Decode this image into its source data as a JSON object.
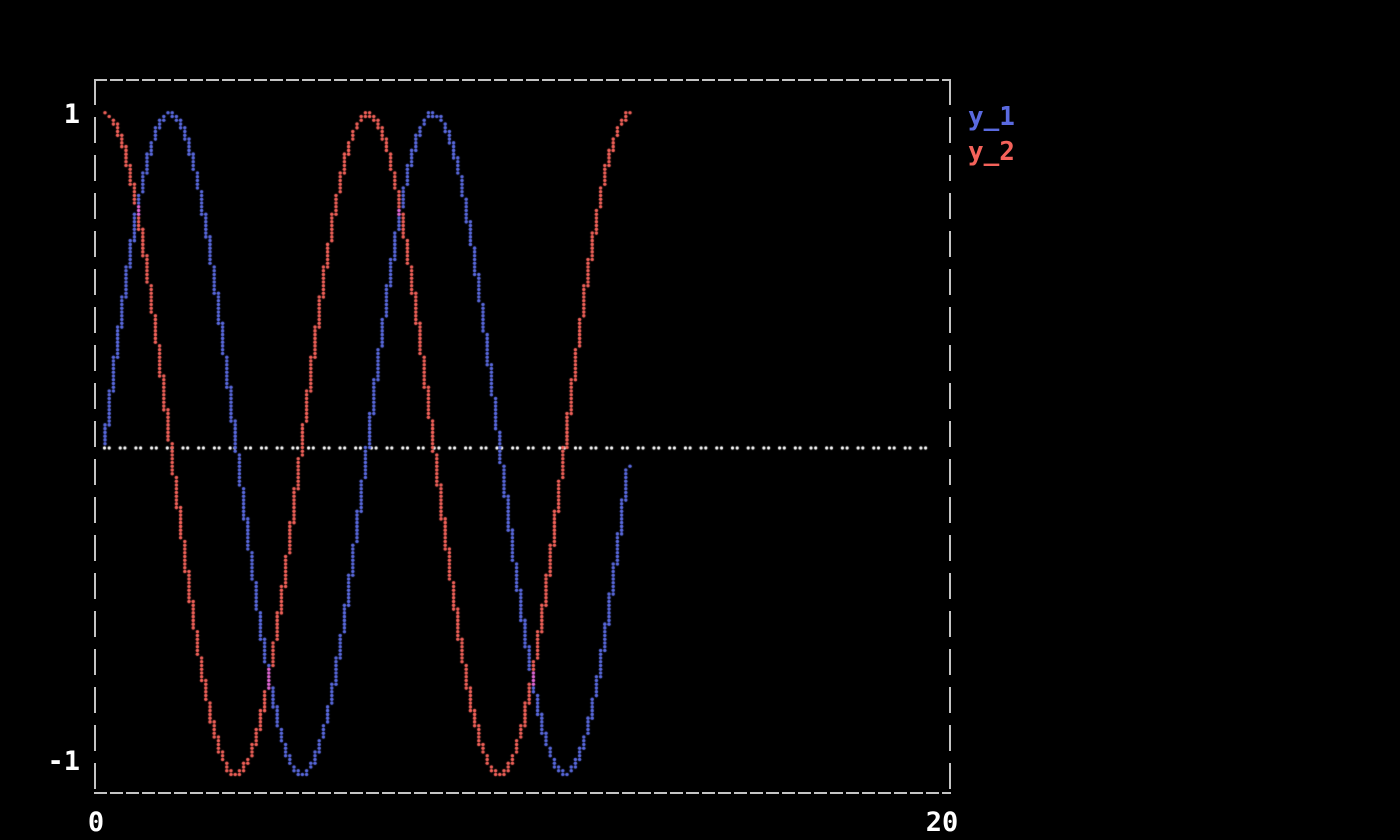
{
  "window": {
    "background": "#000000"
  },
  "ticks": {
    "y_top": "1",
    "y_bottom": "-1",
    "x_left": "0",
    "x_right": "20"
  },
  "legend": {
    "items": [
      {
        "label": "y_1",
        "color": "#5a6ae0"
      },
      {
        "label": "y_2",
        "color": "#f4625a"
      }
    ]
  },
  "chart_data": {
    "type": "scatter",
    "title": "",
    "xlabel": "",
    "ylabel": "",
    "xlim": [
      0,
      20
    ],
    "ylim": [
      -1,
      1
    ],
    "x_tick_labels": [
      "0",
      "20"
    ],
    "y_tick_labels": [
      "1",
      "-1"
    ],
    "grid": false,
    "background": "#000000",
    "axes_color": "#c4c4c4",
    "legend_position": "outside-top-right",
    "marker": "terminal-dot",
    "overlap_color": "#e468d8",
    "series": [
      {
        "name": "y_1",
        "color": "#5a6ae0",
        "fn": "sin(x)",
        "x_start": 0,
        "x_step": 0.25,
        "y": [
          0.0,
          0.247,
          0.479,
          0.682,
          0.841,
          0.949,
          0.997,
          0.984,
          0.909,
          0.778,
          0.599,
          0.382,
          0.141,
          -0.108,
          -0.351,
          -0.572,
          -0.757,
          -0.895,
          -0.978,
          -0.999,
          -0.959,
          -0.859,
          -0.706,
          -0.508,
          -0.279,
          -0.033,
          0.215,
          0.45,
          0.657,
          0.825,
          0.938,
          0.994,
          0.989,
          0.924,
          0.798,
          0.625,
          0.412,
          0.174,
          -0.075,
          -0.321,
          -0.544,
          -0.732,
          -0.88,
          -0.969,
          -1.0,
          -0.968,
          -0.875,
          -0.728,
          -0.536,
          -0.311,
          -0.066
        ]
      },
      {
        "name": "y_2",
        "color": "#f4625a",
        "fn": "cos(x)",
        "x_start": 0,
        "x_step": 0.25,
        "y": [
          1.0,
          0.969,
          0.878,
          0.732,
          0.54,
          0.315,
          0.071,
          -0.178,
          -0.416,
          -0.628,
          -0.801,
          -0.924,
          -0.99,
          -0.994,
          -0.936,
          -0.821,
          -0.654,
          -0.446,
          -0.211,
          0.038,
          0.284,
          0.513,
          0.709,
          0.861,
          0.96,
          1.0,
          0.977,
          0.893,
          0.754,
          0.565,
          0.347,
          0.104,
          -0.146,
          -0.383,
          -0.602,
          -0.786,
          -0.911,
          -0.985,
          -0.997,
          -0.948,
          -0.839,
          -0.679,
          -0.476,
          -0.244,
          0.004,
          0.252,
          0.485,
          0.685,
          0.844,
          0.95,
          0.998
        ]
      }
    ],
    "hlines": [
      {
        "y": 0,
        "x_min": 0,
        "x_max": 19.8,
        "color": "#ffffff",
        "style": "dotted-pairs"
      }
    ]
  }
}
